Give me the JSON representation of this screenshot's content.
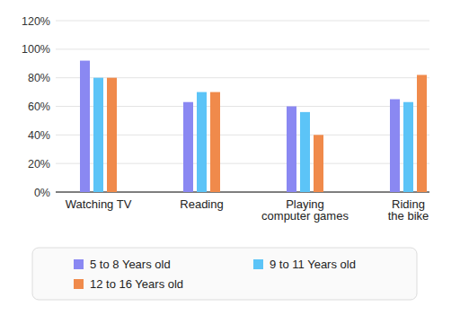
{
  "chart_data": {
    "type": "bar",
    "categories": [
      "Watching TV",
      "Reading",
      "Playing computer games",
      "Riding the bike"
    ],
    "series": [
      {
        "name": "5 to 8 Years old",
        "color": "#8a88f2",
        "values": [
          92,
          63,
          60,
          65
        ]
      },
      {
        "name": "9 to 11 Years old",
        "color": "#5cc4f7",
        "values": [
          80,
          70,
          56,
          63
        ]
      },
      {
        "name": "12 to 16 Years old",
        "color": "#f08a4b",
        "values": [
          80,
          70,
          40,
          82
        ]
      }
    ],
    "ylim": [
      0,
      120
    ],
    "yticks": [
      {
        "value": 0,
        "label": "0%"
      },
      {
        "value": 20,
        "label": "20%"
      },
      {
        "value": 40,
        "label": "40%"
      },
      {
        "value": 60,
        "label": "60%"
      },
      {
        "value": 80,
        "label": "80%"
      },
      {
        "value": 100,
        "label": "100%"
      },
      {
        "value": 120,
        "label": "120%"
      }
    ],
    "grid": true,
    "legend": "bottom"
  }
}
